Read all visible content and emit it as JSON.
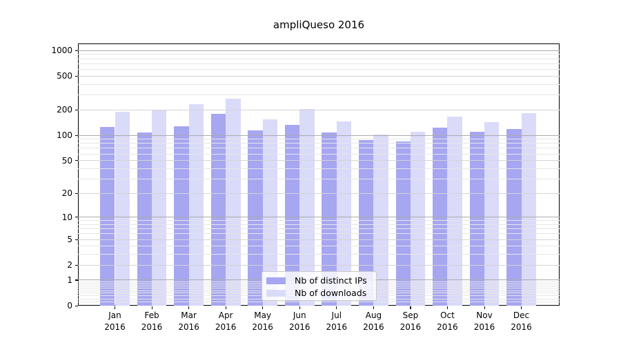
{
  "chart_data": {
    "type": "bar",
    "title": "ampliQueso 2016",
    "categories": [
      "Jan",
      "Feb",
      "Mar",
      "Apr",
      "May",
      "Jun",
      "Jul",
      "Aug",
      "Sep",
      "Oct",
      "Nov",
      "Dec"
    ],
    "category_year": "2016",
    "series": [
      {
        "name": "Nb of distinct IPs",
        "color": "#a6a6f1",
        "values": [
          126,
          107,
          128,
          181,
          115,
          132,
          107,
          88,
          85,
          123,
          110,
          118
        ]
      },
      {
        "name": "Nb of downloads",
        "color": "#dadaf9",
        "values": [
          190,
          197,
          232,
          270,
          153,
          203,
          147,
          102,
          111,
          166,
          143,
          182
        ]
      }
    ],
    "xlabel": "",
    "ylabel": "",
    "y_scale": "log1p",
    "y_ticks": [
      1000,
      500,
      200,
      100,
      50,
      20,
      10,
      5,
      2,
      1,
      0
    ],
    "y_decade_ticks": [
      1000,
      100,
      10,
      1
    ],
    "y_minor_ticks": [
      900,
      800,
      700,
      600,
      400,
      300,
      90,
      80,
      70,
      60,
      40,
      30,
      9,
      8,
      7,
      6,
      4,
      3,
      0.9,
      0.8,
      0.7,
      0.6,
      0.5,
      0.4,
      0.3,
      0.2,
      0.1
    ],
    "ylim": [
      0,
      1213
    ],
    "grid": true,
    "grid_above_bars": true,
    "legend_position": "lower center"
  },
  "colors": {
    "bar_distinct_ips": "#a6a6f1",
    "bar_downloads": "#dadaf9",
    "grid_decade": "#ababab",
    "grid_labeled": "#d4d4d4",
    "grid_minor": "#e6e6e6",
    "frame": "#000000",
    "legend_border": "#c9c9c9"
  }
}
